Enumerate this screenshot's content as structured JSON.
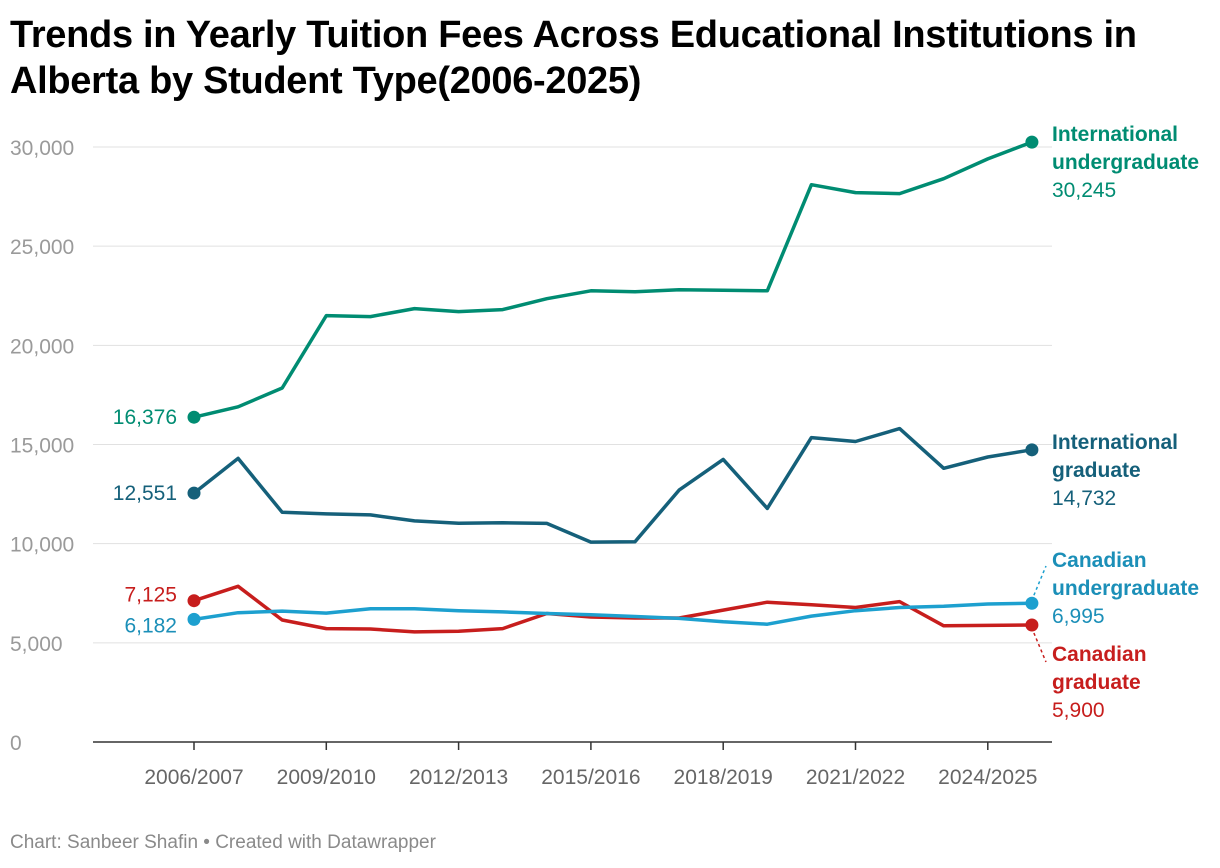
{
  "header": {
    "title": "Trends in Yearly Tuition Fees Across Educational Institutions in Alberta by Student Type(2006-2025)"
  },
  "footer": {
    "credit": "Chart: Sanbeer Shafin • Created with Datawrapper"
  },
  "chart_data": {
    "type": "line",
    "title": "Trends in Yearly Tuition Fees Across Educational Institutions in Alberta by Student Type(2006-2025)",
    "xlabel": "",
    "ylabel": "",
    "ylim": [
      0,
      30000
    ],
    "y_ticks": [
      0,
      5000,
      10000,
      15000,
      20000,
      25000,
      30000
    ],
    "y_tick_labels": [
      "0",
      "5,000",
      "10,000",
      "15,000",
      "20,000",
      "25,000",
      "30,000"
    ],
    "x": [
      "2006/2007",
      "2007/2008",
      "2008/2009",
      "2009/2010",
      "2010/2011",
      "2011/2012",
      "2012/2013",
      "2013/2014",
      "2014/2015",
      "2015/2016",
      "2016/2017",
      "2017/2018",
      "2018/2019",
      "2019/2020",
      "2020/2021",
      "2021/2022",
      "2022/2023",
      "2023/2024",
      "2024/2025",
      "2025/2026"
    ],
    "x_tick_labels": [
      "2006/2007",
      "2009/2010",
      "2012/2013",
      "2015/2016",
      "2018/2019",
      "2021/2022",
      "2024/2025"
    ],
    "grid": true,
    "legend": "direct labels at line ends",
    "series": [
      {
        "name": "International undergraduate",
        "color": "#008c72",
        "label_lines": [
          "International",
          "undergraduate"
        ],
        "start_label": "16,376",
        "end_label": "30,245",
        "values": [
          16376,
          16900,
          17850,
          21500,
          21450,
          21850,
          21700,
          21800,
          22350,
          22750,
          22700,
          22800,
          22780,
          22750,
          28100,
          27700,
          27650,
          28400,
          29400,
          30245
        ]
      },
      {
        "name": "International graduate",
        "color": "#15607a",
        "label_lines": [
          "International",
          "graduate"
        ],
        "start_label": "12,551",
        "end_label": "14,732",
        "values": [
          12551,
          14300,
          11580,
          11500,
          11450,
          11150,
          11030,
          11050,
          11020,
          10080,
          10100,
          12700,
          14250,
          11780,
          15350,
          15150,
          15800,
          13800,
          14370,
          14732
        ]
      },
      {
        "name": "Canadian undergraduate",
        "color": "#1da0cf",
        "text_color": "#1b8fb8",
        "label_lines": [
          "Canadian",
          "undergraduate"
        ],
        "start_label": "6,182",
        "end_label": "6,995",
        "values": [
          6182,
          6520,
          6600,
          6500,
          6720,
          6720,
          6620,
          6560,
          6480,
          6420,
          6330,
          6230,
          6060,
          5940,
          6350,
          6620,
          6780,
          6840,
          6960,
          6995
        ]
      },
      {
        "name": "Canadian graduate",
        "color": "#c71e1d",
        "label_lines": [
          "Canadian",
          "graduate"
        ],
        "start_label": "7,125",
        "end_label": "5,900",
        "values": [
          7125,
          7850,
          6150,
          5720,
          5700,
          5550,
          5580,
          5720,
          6480,
          6300,
          6250,
          6250,
          6650,
          7050,
          6920,
          6780,
          7080,
          5860,
          5880,
          5900
        ]
      }
    ]
  }
}
